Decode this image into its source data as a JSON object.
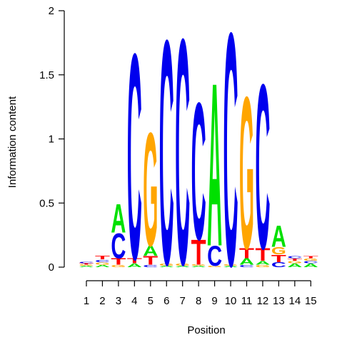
{
  "chart_data": {
    "type": "sequence-logo",
    "title": "",
    "xlabel": "Position",
    "ylabel": "Information content",
    "ylim": [
      0,
      2
    ],
    "y_ticks": [
      0,
      0.5,
      1,
      1.5,
      2
    ],
    "y_tick_labels": [
      "0",
      "0.5",
      "1",
      "1.5",
      "2"
    ],
    "x_tick_labels": [
      "1",
      "2",
      "3",
      "4",
      "5",
      "6",
      "7",
      "8",
      "9",
      "10",
      "11",
      "12",
      "13",
      "14",
      "15"
    ],
    "colors": {
      "A": "#00e000",
      "C": "#0000ee",
      "G": "#ffa500",
      "T": "#ff0000"
    },
    "positions": [
      {
        "position": "1",
        "letters": [
          {
            "letter": "A",
            "height": 0.01
          },
          {
            "letter": "G",
            "height": 0.01
          },
          {
            "letter": "T",
            "height": 0.01
          },
          {
            "letter": "C",
            "height": 0.01
          }
        ]
      },
      {
        "position": "2",
        "letters": [
          {
            "letter": "A",
            "height": 0.02
          },
          {
            "letter": "G",
            "height": 0.02
          },
          {
            "letter": "C",
            "height": 0.02
          },
          {
            "letter": "T",
            "height": 0.03
          }
        ]
      },
      {
        "position": "3",
        "letters": [
          {
            "letter": "G",
            "height": 0.02
          },
          {
            "letter": "T",
            "height": 0.05
          },
          {
            "letter": "C",
            "height": 0.2
          },
          {
            "letter": "A",
            "height": 0.23
          }
        ]
      },
      {
        "position": "4",
        "letters": [
          {
            "letter": "A",
            "height": 0.03
          },
          {
            "letter": "T",
            "height": 0.04
          },
          {
            "letter": "C",
            "height": 1.65
          }
        ]
      },
      {
        "position": "5",
        "letters": [
          {
            "letter": "C",
            "height": 0.02
          },
          {
            "letter": "T",
            "height": 0.07
          },
          {
            "letter": "A",
            "height": 0.08
          },
          {
            "letter": "G",
            "height": 0.91
          }
        ]
      },
      {
        "position": "6",
        "letters": [
          {
            "letter": "A",
            "height": 0.01
          },
          {
            "letter": "G",
            "height": 0.02
          },
          {
            "letter": "C",
            "height": 1.8
          }
        ]
      },
      {
        "position": "7",
        "letters": [
          {
            "letter": "A",
            "height": 0.01
          },
          {
            "letter": "G",
            "height": 0.02
          },
          {
            "letter": "C",
            "height": 1.81
          }
        ]
      },
      {
        "position": "8",
        "letters": [
          {
            "letter": "A",
            "height": 0.01
          },
          {
            "letter": "G",
            "height": 0.01
          },
          {
            "letter": "T",
            "height": 0.2
          },
          {
            "letter": "C",
            "height": 1.1
          }
        ]
      },
      {
        "position": "9",
        "letters": [
          {
            "letter": "G",
            "height": 0.01
          },
          {
            "letter": "C",
            "height": 0.16
          },
          {
            "letter": "A",
            "height": 1.31
          }
        ]
      },
      {
        "position": "10",
        "letters": [
          {
            "letter": "A",
            "height": 0.01
          },
          {
            "letter": "G",
            "height": 0.01
          },
          {
            "letter": "C",
            "height": 1.87
          }
        ]
      },
      {
        "position": "11",
        "letters": [
          {
            "letter": "C",
            "height": 0.02
          },
          {
            "letter": "A",
            "height": 0.05
          },
          {
            "letter": "T",
            "height": 0.08
          },
          {
            "letter": "G",
            "height": 1.22
          }
        ]
      },
      {
        "position": "12",
        "letters": [
          {
            "letter": "G",
            "height": 0.02
          },
          {
            "letter": "A",
            "height": 0.03
          },
          {
            "letter": "T",
            "height": 0.1
          },
          {
            "letter": "C",
            "height": 1.32
          }
        ]
      },
      {
        "position": "13",
        "letters": [
          {
            "letter": "C",
            "height": 0.04
          },
          {
            "letter": "T",
            "height": 0.06
          },
          {
            "letter": "G",
            "height": 0.06
          },
          {
            "letter": "A",
            "height": 0.17
          }
        ]
      },
      {
        "position": "14",
        "letters": [
          {
            "letter": "A",
            "height": 0.03
          },
          {
            "letter": "G",
            "height": 0.02
          },
          {
            "letter": "T",
            "height": 0.02
          },
          {
            "letter": "C",
            "height": 0.02
          }
        ]
      },
      {
        "position": "15",
        "letters": [
          {
            "letter": "A",
            "height": 0.03
          },
          {
            "letter": "C",
            "height": 0.02
          },
          {
            "letter": "G",
            "height": 0.02
          },
          {
            "letter": "T",
            "height": 0.02
          }
        ]
      }
    ]
  }
}
